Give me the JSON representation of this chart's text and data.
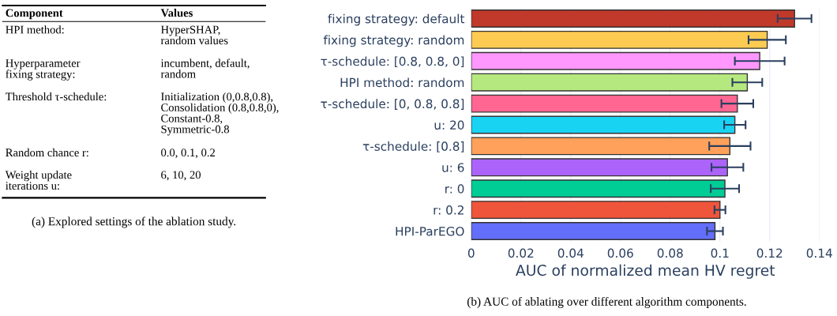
{
  "chart_data": [
    {
      "type": "other",
      "annotations": [
        "Component",
        "Values",
        "HPI method:",
        "HyperSHAP,\nrandom values",
        "Hyperparameter\nfixing strategy:",
        "incumbent, default,\nrandom",
        "Threshold τ-schedule:",
        "Initialization (0,0.8,0.8),\nConsolidation (0.8,0.8,0),\nConstant-0.8,\nSymmetric-0.8",
        "Random chance r:",
        "0.0, 0.1, 0.2",
        "Weight update\niterations u:",
        "6, 10, 20",
        "(a) Explored settings of the ablation study."
      ]
    },
    {
      "type": "bar",
      "orientation": "horizontal",
      "categories": [
        "fixing strategy: default",
        "fixing strategy: random",
        "τ-schedule: [0.8, 0.8, 0]",
        "HPI method: random",
        "τ-schedule: [0, 0.8, 0.8]",
        "u: 20",
        "τ-schedule: [0.8]",
        "u: 6",
        "r: 0",
        "r: 0.2",
        "HPI-ParEGO"
      ],
      "values": [
        0.13,
        0.119,
        0.116,
        0.111,
        0.107,
        0.106,
        0.104,
        0.103,
        0.102,
        0.1,
        0.098
      ],
      "errors": [
        0.0068,
        0.0075,
        0.01,
        0.006,
        0.0064,
        0.0043,
        0.0083,
        0.0064,
        0.0057,
        0.0022,
        0.0032
      ],
      "colors": [
        "#c0392b",
        "#fecb52",
        "#ff97ff",
        "#b6e880",
        "#ff6692",
        "#19d3f3",
        "#ffa15a",
        "#ab63fa",
        "#00cc96",
        "#ef553b",
        "#636efa"
      ],
      "xlim": [
        0,
        0.14
      ],
      "xticks": [
        0,
        0.02,
        0.04,
        0.06,
        0.08,
        0.1,
        0.12,
        0.14
      ],
      "xlabel": "AUC of normalized mean HV regret",
      "grid": "x",
      "annotations": [
        "(b) AUC of ablating over different algorithm components."
      ]
    }
  ]
}
